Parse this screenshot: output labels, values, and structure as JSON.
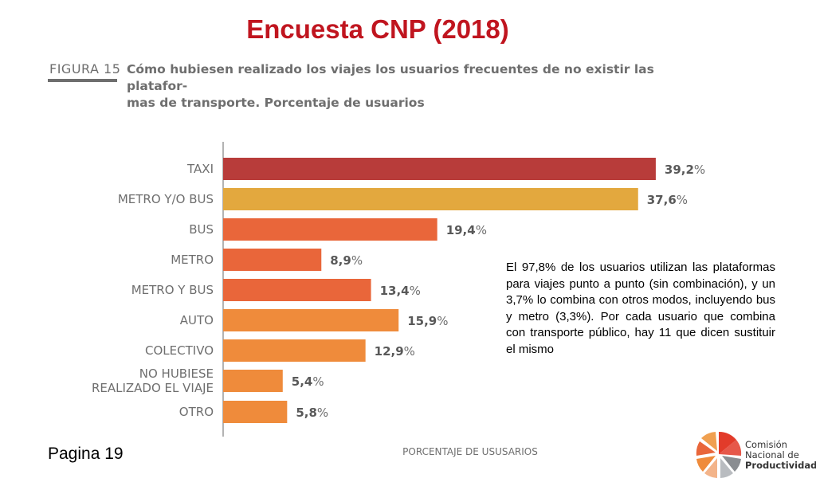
{
  "header": {
    "title": "Encuesta CNP (2018)"
  },
  "figure": {
    "label": "FIGURA 15",
    "caption_line1": "Cómo hubiesen realizado los viajes los usuarios frecuentes de no existir las platafor-",
    "caption_line2": "mas de transporte. Porcentaje de usuarios"
  },
  "note": "El 97,8% de los usuarios utilizan las plataformas para viajes punto a punto (sin combinación), y un 3,7% lo combina con otros modos, incluyendo bus y metro (3,3%). Por cada usuario que combina con transporte público, hay 11 que dicen sustituir el mismo",
  "footer": {
    "page": "Pagina 19"
  },
  "logo": {
    "line1": "Comisión",
    "line2": "Nacional de",
    "line3": "Productividad"
  },
  "colors": {
    "taxi": "#b83c3a",
    "metro_bus": "#e3a83e",
    "orange_dark": "#e9663a",
    "orange_light": "#ef8b3b",
    "text_gray": "#6e6e6e",
    "title_red": "#c0151f"
  },
  "chart_data": {
    "type": "bar",
    "orientation": "horizontal",
    "xlabel": "PORCENTAJE DE USUSARIOS",
    "unit": "%",
    "xlim": [
      0,
      40
    ],
    "categories": [
      {
        "label": [
          "TAXI"
        ],
        "value": 39.2,
        "num": "39,2",
        "color": "#b83c3a"
      },
      {
        "label": [
          "METRO Y/O BUS"
        ],
        "value": 37.6,
        "num": "37,6",
        "color": "#e3a83e"
      },
      {
        "label": [
          "BUS"
        ],
        "value": 19.4,
        "num": "19,4",
        "color": "#e9663a"
      },
      {
        "label": [
          "METRO"
        ],
        "value": 8.9,
        "num": "8,9",
        "color": "#e9663a"
      },
      {
        "label": [
          "METRO Y BUS"
        ],
        "value": 13.4,
        "num": "13,4",
        "color": "#e9663a"
      },
      {
        "label": [
          "AUTO"
        ],
        "value": 15.9,
        "num": "15,9",
        "color": "#ef8b3b"
      },
      {
        "label": [
          "COLECTIVO"
        ],
        "value": 12.9,
        "num": "12,9",
        "color": "#ef8b3b"
      },
      {
        "label": [
          "NO HUBIESE",
          "REALIZADO EL VIAJE"
        ],
        "value": 5.4,
        "num": "5,4",
        "color": "#ef8b3b"
      },
      {
        "label": [
          "OTRO"
        ],
        "value": 5.8,
        "num": "5,8",
        "color": "#ef8b3b"
      }
    ]
  }
}
